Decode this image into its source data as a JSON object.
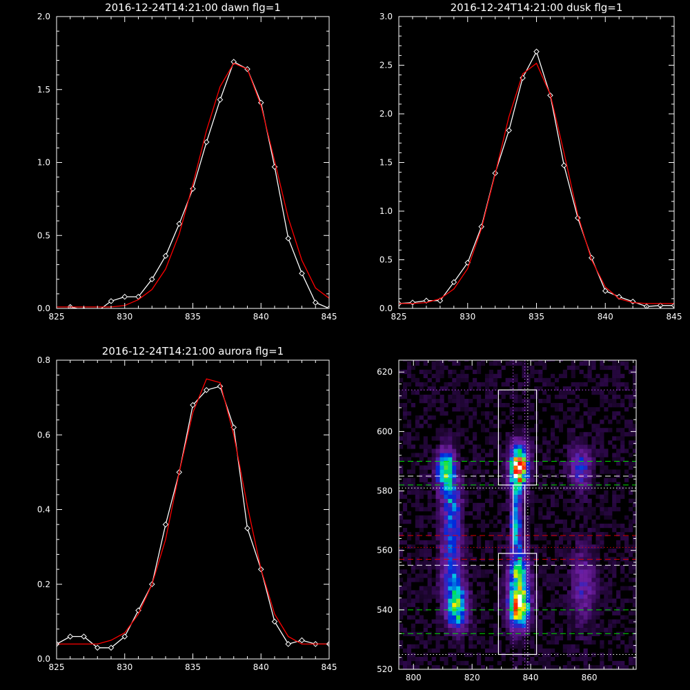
{
  "chart_data": [
    {
      "type": "line",
      "title": "2016-12-24T14:21:00 dawn flg=1",
      "xlim": [
        825,
        845
      ],
      "ylim": [
        0,
        2.0
      ],
      "xticks": [
        "825",
        "830",
        "835",
        "840",
        "845"
      ],
      "yticks": [
        "0.0",
        "0.5",
        "1.0",
        "1.5",
        "2.0"
      ],
      "series": [
        {
          "color": "#ffffff",
          "markers": "diamond",
          "x": [
            826,
            827,
            828,
            829,
            830,
            831,
            832,
            833,
            834,
            835,
            836,
            837,
            838,
            839,
            840,
            841,
            842,
            843,
            844,
            845
          ],
          "y": [
            0.01,
            -0.01,
            -0.02,
            0.05,
            0.08,
            0.08,
            0.2,
            0.36,
            0.58,
            0.82,
            1.14,
            1.43,
            1.69,
            1.64,
            1.41,
            0.97,
            0.48,
            0.24,
            0.04,
            0.0
          ]
        },
        {
          "color": "#ff0000",
          "markers": "none",
          "x": [
            825,
            826,
            827,
            828,
            829,
            830,
            831,
            832,
            833,
            834,
            835,
            836,
            837,
            838,
            839,
            840,
            841,
            842,
            843,
            844,
            845
          ],
          "y": [
            0.01,
            0.01,
            0.01,
            0.01,
            0.01,
            0.02,
            0.06,
            0.13,
            0.27,
            0.51,
            0.85,
            1.22,
            1.52,
            1.68,
            1.64,
            1.39,
            1.01,
            0.62,
            0.33,
            0.14,
            0.07
          ]
        }
      ]
    },
    {
      "type": "line",
      "title": "2016-12-24T14:21:00 dusk flg=1",
      "xlim": [
        825,
        845
      ],
      "ylim": [
        0,
        3.0
      ],
      "xticks": [
        "825",
        "830",
        "835",
        "840",
        "845"
      ],
      "yticks": [
        "0.0",
        "0.5",
        "1.0",
        "1.5",
        "2.0",
        "2.5",
        "3.0"
      ],
      "series": [
        {
          "color": "#ffffff",
          "markers": "diamond",
          "x": [
            825,
            826,
            827,
            828,
            829,
            830,
            831,
            832,
            833,
            834,
            835,
            836,
            837,
            838,
            839,
            840,
            841,
            842,
            843,
            844,
            845
          ],
          "y": [
            0.05,
            0.06,
            0.08,
            0.08,
            0.27,
            0.47,
            0.84,
            1.39,
            1.83,
            2.37,
            2.64,
            2.19,
            1.47,
            0.93,
            0.52,
            0.18,
            0.12,
            0.07,
            0.02,
            0.03,
            0.03
          ]
        },
        {
          "color": "#ff0000",
          "markers": "none",
          "x": [
            825,
            826,
            827,
            828,
            829,
            830,
            831,
            832,
            833,
            834,
            835,
            836,
            837,
            838,
            839,
            840,
            841,
            842,
            843,
            844,
            845
          ],
          "y": [
            0.05,
            0.05,
            0.06,
            0.1,
            0.2,
            0.41,
            0.82,
            1.38,
            1.97,
            2.41,
            2.52,
            2.2,
            1.6,
            0.96,
            0.5,
            0.22,
            0.1,
            0.06,
            0.05,
            0.05,
            0.05
          ]
        }
      ]
    },
    {
      "type": "line",
      "title": "2016-12-24T14:21:00 aurora flg=1",
      "xlim": [
        825,
        845
      ],
      "ylim": [
        0,
        0.8
      ],
      "xticks": [
        "825",
        "830",
        "835",
        "840",
        "845"
      ],
      "yticks": [
        "0.0",
        "0.2",
        "0.4",
        "0.6",
        "0.8"
      ],
      "series": [
        {
          "color": "#ffffff",
          "markers": "diamond",
          "x": [
            825,
            826,
            827,
            828,
            829,
            830,
            831,
            832,
            833,
            834,
            835,
            836,
            837,
            838,
            839,
            840,
            841,
            842,
            843,
            844,
            845
          ],
          "y": [
            0.04,
            0.06,
            0.06,
            0.03,
            0.03,
            0.06,
            0.13,
            0.2,
            0.36,
            0.5,
            0.68,
            0.72,
            0.73,
            0.62,
            0.35,
            0.24,
            0.1,
            0.04,
            0.05,
            0.04,
            0.04
          ]
        },
        {
          "color": "#ff0000",
          "markers": "none",
          "x": [
            825,
            826,
            827,
            828,
            829,
            830,
            831,
            832,
            833,
            834,
            835,
            836,
            837,
            838,
            839,
            840,
            841,
            842,
            843,
            844,
            845
          ],
          "y": [
            0.04,
            0.04,
            0.04,
            0.04,
            0.05,
            0.07,
            0.12,
            0.2,
            0.32,
            0.5,
            0.66,
            0.75,
            0.74,
            0.6,
            0.41,
            0.24,
            0.12,
            0.06,
            0.04,
            0.04,
            0.04
          ]
        }
      ]
    },
    {
      "type": "heatmap",
      "title": "",
      "xlim": [
        795,
        876
      ],
      "ylim": [
        520,
        624
      ],
      "xticks": [
        "800",
        "820",
        "840",
        "860"
      ],
      "yticks": [
        "520",
        "540",
        "560",
        "580",
        "600",
        "620"
      ],
      "blobs": [
        {
          "x": 811,
          "y": 587,
          "sx": 2.3,
          "sy": 5,
          "amp": 0.55
        },
        {
          "x": 813,
          "y": 575,
          "sx": 2.3,
          "sy": 7,
          "amp": 0.3
        },
        {
          "x": 813,
          "y": 556,
          "sx": 2.5,
          "sy": 10,
          "amp": 0.32
        },
        {
          "x": 815,
          "y": 541,
          "sx": 2.5,
          "sy": 5,
          "amp": 0.55
        },
        {
          "x": 836,
          "y": 588,
          "sx": 2.1,
          "sy": 5,
          "amp": 0.95
        },
        {
          "x": 835,
          "y": 570,
          "sx": 1.4,
          "sy": 7,
          "amp": 0.45
        },
        {
          "x": 836,
          "y": 552,
          "sx": 2.4,
          "sy": 6,
          "amp": 0.5
        },
        {
          "x": 836,
          "y": 541,
          "sx": 2.5,
          "sy": 5,
          "amp": 0.72
        },
        {
          "x": 857,
          "y": 588,
          "sx": 2.6,
          "sy": 5,
          "amp": 0.3
        },
        {
          "x": 858,
          "y": 548,
          "sx": 2.8,
          "sy": 9,
          "amp": 0.22
        }
      ],
      "boxes": [
        {
          "x": [
            829,
            842
          ],
          "y": [
            582,
            614
          ]
        },
        {
          "x": [
            834,
            838
          ],
          "y": [
            559,
            582
          ]
        },
        {
          "x": [
            829,
            842
          ],
          "y": [
            525,
            559
          ]
        }
      ],
      "hlines": [
        {
          "y": 614,
          "color": "#c050ff",
          "style": "dotted"
        },
        {
          "y": 590,
          "color": "#00e000",
          "style": "dashed"
        },
        {
          "y": 585,
          "color": "#ffffff",
          "style": "dashed"
        },
        {
          "y": 582,
          "color": "#00e000",
          "style": "dashed"
        },
        {
          "y": 581,
          "color": "#ffffff",
          "style": "dotted"
        },
        {
          "y": 565,
          "color": "#e00000",
          "style": "dashed"
        },
        {
          "y": 561,
          "color": "#e00000",
          "style": "dotted"
        },
        {
          "y": 557,
          "color": "#e00000",
          "style": "dashed"
        },
        {
          "y": 555,
          "color": "#ffffff",
          "style": "dashed"
        },
        {
          "y": 540,
          "color": "#00e000",
          "style": "dashed"
        },
        {
          "y": 532,
          "color": "#00e000",
          "style": "dashed"
        },
        {
          "y": 525,
          "color": "#ffffff",
          "style": "dotted"
        }
      ],
      "vlines": [
        {
          "x": 834,
          "color": "#c050ff",
          "style": "dotted"
        },
        {
          "x": 838,
          "color": "#c050ff",
          "style": "dotted"
        },
        {
          "x": 839,
          "color": "#ffffff",
          "style": "dotted"
        }
      ]
    }
  ]
}
